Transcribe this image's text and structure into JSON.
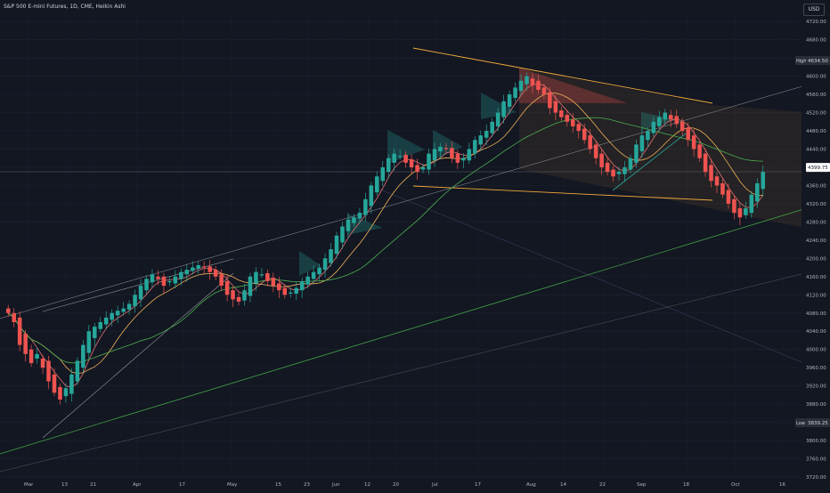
{
  "header": {
    "title": "S&P 500 E-mini Futures, 1D, CME, Heikin Ashi"
  },
  "toolbar": {
    "currency_label": "USD"
  },
  "price_axis": {
    "ticks": [
      "4720.00",
      "4680.00",
      "4640.00",
      "4600.00",
      "4560.00",
      "4520.00",
      "4480.00",
      "4440.00",
      "4400.00",
      "4360.00",
      "4320.00",
      "4280.00",
      "4240.00",
      "4200.00",
      "4160.00",
      "4120.00",
      "4080.00",
      "4040.00",
      "4000.00",
      "3960.00",
      "3920.00",
      "3880.00",
      "3840.00",
      "3800.00",
      "3760.00",
      "3720.00"
    ],
    "high_label": "High",
    "high_value": "4634.50",
    "low_label": "Low",
    "low_value": "3839.25",
    "last_value": "4399.75"
  },
  "time_axis": {
    "labels": [
      "Mar",
      "13",
      "21",
      "Apr",
      "17",
      "May",
      "15",
      "23",
      "Jun",
      "12",
      "20",
      "Jul",
      "17",
      "Aug",
      "14",
      "22",
      "Sep",
      "18",
      "Oct",
      "16"
    ]
  },
  "colors": {
    "background": "#131722",
    "up": "#26a69a",
    "down": "#ef5350",
    "ma_fast": "#e57373",
    "ma_mid": "#f2b15a",
    "ma_slow": "#4caf50",
    "trendline": "#f2a93b",
    "channel_line": "#9598a1",
    "support_line": "#43a047"
  },
  "chart_data": {
    "type": "candlestick",
    "title": "S&P 500 E-mini Futures, 1D, CME, Heikin Ashi",
    "ylim": [
      3720,
      4740
    ],
    "grid": true,
    "x_range": [
      "Mar",
      "16"
    ],
    "closes": [
      4080,
      4060,
      4010,
      3990,
      3970,
      3990,
      3960,
      3930,
      3905,
      3890,
      3915,
      3945,
      3975,
      4010,
      4040,
      4050,
      4060,
      4070,
      4080,
      4085,
      4090,
      4100,
      4120,
      4140,
      4155,
      4165,
      4155,
      4140,
      4150,
      4160,
      4170,
      4175,
      4180,
      4185,
      4180,
      4170,
      4160,
      4140,
      4120,
      4110,
      4105,
      4130,
      4160,
      4170,
      4165,
      4150,
      4140,
      4130,
      4120,
      4125,
      4135,
      4150,
      4160,
      4170,
      4180,
      4200,
      4220,
      4250,
      4270,
      4285,
      4290,
      4300,
      4330,
      4360,
      4380,
      4400,
      4420,
      4430,
      4425,
      4410,
      4400,
      4390,
      4400,
      4430,
      4440,
      4445,
      4440,
      4420,
      4410,
      4420,
      4440,
      4460,
      4470,
      4480,
      4500,
      4520,
      4545,
      4560,
      4575,
      4590,
      4600,
      4580,
      4570,
      4560,
      4530,
      4520,
      4510,
      4500,
      4490,
      4480,
      4460,
      4440,
      4420,
      4400,
      4390,
      4380,
      4390,
      4400,
      4420,
      4450,
      4470,
      4480,
      4500,
      4510,
      4520,
      4505,
      4495,
      4480,
      4460,
      4440,
      4420,
      4390,
      4370,
      4360,
      4340,
      4320,
      4300,
      4290,
      4310,
      4340,
      4365,
      4390
    ]
  }
}
